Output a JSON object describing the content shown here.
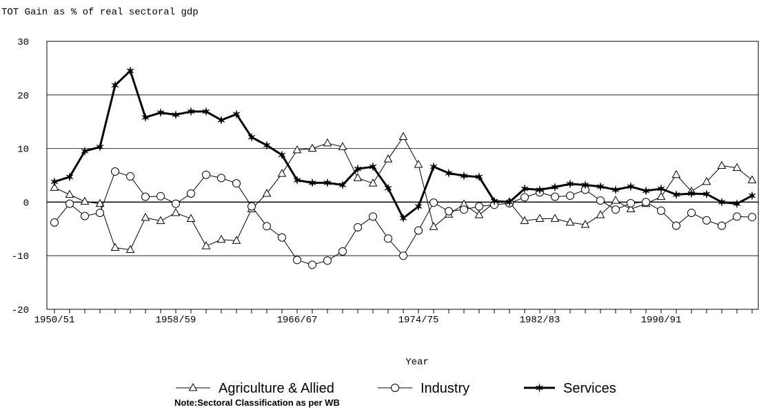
{
  "chart_data": {
    "type": "line",
    "title": "TOT Gain as % of real sectoral gdp",
    "x_label": "Year",
    "note": "Note:Sectoral Classification as per  WB",
    "categories": [
      "1950/51",
      null,
      null,
      null,
      null,
      null,
      null,
      null,
      "1958/59",
      null,
      null,
      null,
      null,
      null,
      null,
      null,
      "1966/67",
      null,
      null,
      null,
      null,
      null,
      null,
      null,
      "1974/75",
      null,
      null,
      null,
      null,
      null,
      null,
      null,
      "1982/83",
      null,
      null,
      null,
      null,
      null,
      null,
      null,
      "1990/91",
      null,
      null,
      null,
      null,
      null,
      null
    ],
    "ylim": [
      -20,
      30
    ],
    "yticks": [
      -20,
      -10,
      0,
      10,
      20,
      30
    ],
    "grid": true,
    "legend": "bottom",
    "series": [
      {
        "name": "Agriculture & Allied",
        "color": "#000000",
        "marker": "triangle",
        "values": [
          2.7,
          1.4,
          0.1,
          -0.3,
          -8.5,
          -8.9,
          -2.9,
          -3.5,
          -2,
          -3.1,
          -8.2,
          -7,
          -7.2,
          -1.3,
          1.6,
          5.3,
          9.7,
          10,
          11,
          10.3,
          4.5,
          3.5,
          8,
          12.2,
          7,
          -4.6,
          -2.3,
          -0.4,
          -2.4,
          -0.1,
          0,
          -3.5,
          -3.1,
          -3.1,
          -3.8,
          -4.2,
          -2.4,
          0.3,
          -1.3,
          -0.3,
          1,
          5.1,
          2,
          3.8,
          6.8,
          6.4,
          4.1
        ]
      },
      {
        "name": "Industry",
        "color": "#000000",
        "marker": "circle",
        "values": [
          -3.8,
          -0.3,
          -2.6,
          -2,
          5.7,
          4.8,
          1,
          1.1,
          -0.3,
          1.6,
          5.1,
          4.5,
          3.5,
          -0.8,
          -4.5,
          -6.6,
          -10.8,
          -11.7,
          -10.9,
          -9.2,
          -4.7,
          -2.7,
          -6.8,
          -10,
          -5.3,
          -0.1,
          -1.7,
          -1.4,
          -0.8,
          -0.5,
          -0.2,
          0.9,
          1.8,
          1,
          1.2,
          2.3,
          0.3,
          -1.4,
          -0.2,
          0,
          -1.6,
          -4.4,
          -2,
          -3.4,
          -4.4,
          -2.7,
          -2.8
        ]
      },
      {
        "name": "Services",
        "color": "#000000",
        "marker": "star",
        "values": [
          3.8,
          4.7,
          9.5,
          10.3,
          21.8,
          24.5,
          15.8,
          16.7,
          16.3,
          16.9,
          16.9,
          15.3,
          16.4,
          12.1,
          10.6,
          8.8,
          4.1,
          3.6,
          3.6,
          3.2,
          6.2,
          6.6,
          2.6,
          -3,
          -0.8,
          6.6,
          5.4,
          4.9,
          4.7,
          0.2,
          0,
          2.5,
          2.3,
          2.8,
          3.4,
          3.2,
          2.9,
          2.3,
          2.9,
          2.1,
          2.5,
          1.4,
          1.6,
          1.5,
          0,
          -0.3,
          1.2
        ]
      }
    ]
  }
}
